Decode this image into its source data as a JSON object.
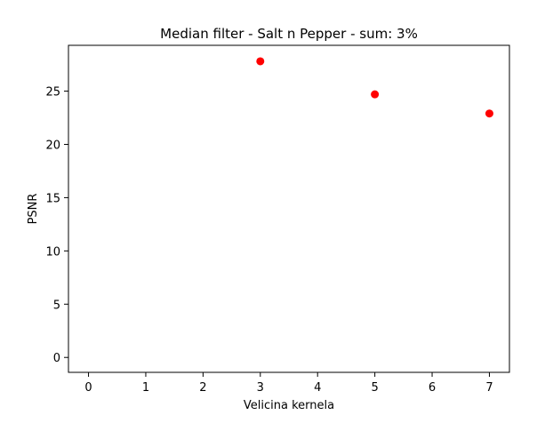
{
  "chart_data": {
    "type": "scatter",
    "title": "Median filter - Salt n Pepper - sum: 3%",
    "xlabel": "Velicina kernela",
    "ylabel": "PSNR",
    "xlim": [
      -0.35,
      7.35
    ],
    "ylim": [
      -1.4,
      29.3
    ],
    "xticks": [
      0,
      1,
      2,
      3,
      4,
      5,
      6,
      7
    ],
    "yticks": [
      0,
      5,
      10,
      15,
      20,
      25
    ],
    "series": [
      {
        "x": [
          3,
          5,
          7
        ],
        "y": [
          27.8,
          24.7,
          22.9
        ],
        "color": "#ff0000"
      }
    ],
    "grid": false,
    "legend": "none"
  }
}
